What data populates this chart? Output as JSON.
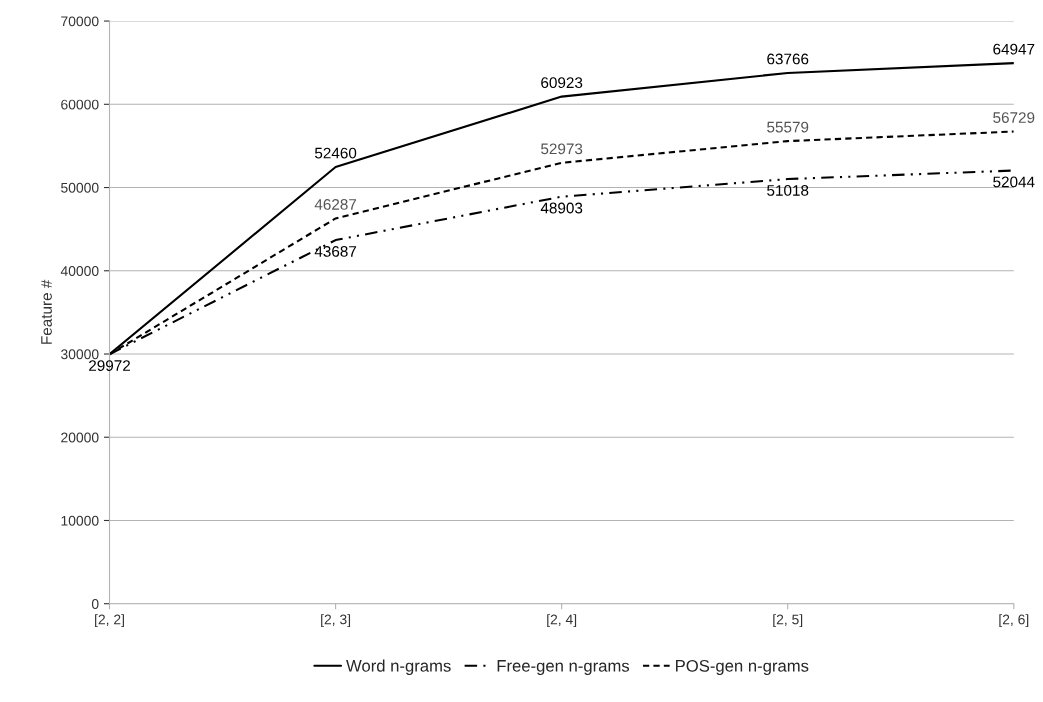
{
  "chart_data": {
    "type": "line",
    "ylabel": "Feature #",
    "categories": [
      "[2, 2]",
      "[2, 3]",
      "[2, 4]",
      "[2, 5]",
      "[2, 6]"
    ],
    "series": [
      {
        "name": "Word n-grams",
        "color": "#000000",
        "line_style": "solid",
        "values": [
          29972,
          52460,
          60923,
          63766,
          64947
        ],
        "value_labels": [
          null,
          "52460",
          "60923",
          "63766",
          "64947"
        ]
      },
      {
        "name": "Free-gen n-grams",
        "color": "#000000",
        "line_style": "dashdot",
        "values": [
          29972,
          43687,
          48903,
          51018,
          52044
        ],
        "value_labels": [
          "29972",
          "43687",
          "48903",
          "51018",
          "52044"
        ]
      },
      {
        "name": "POS-gen n-grams",
        "color": "#000000",
        "line_style": "dashed",
        "values": [
          29972,
          46287,
          52973,
          55579,
          56729
        ],
        "value_labels": [
          null,
          "46287",
          "52973",
          "55579",
          "56729"
        ]
      }
    ],
    "ylim": [
      0,
      70000
    ],
    "yticks": [
      0,
      10000,
      20000,
      30000,
      40000,
      50000,
      60000,
      70000
    ],
    "grid": "y",
    "legend": "bottom",
    "marker": "none"
  }
}
